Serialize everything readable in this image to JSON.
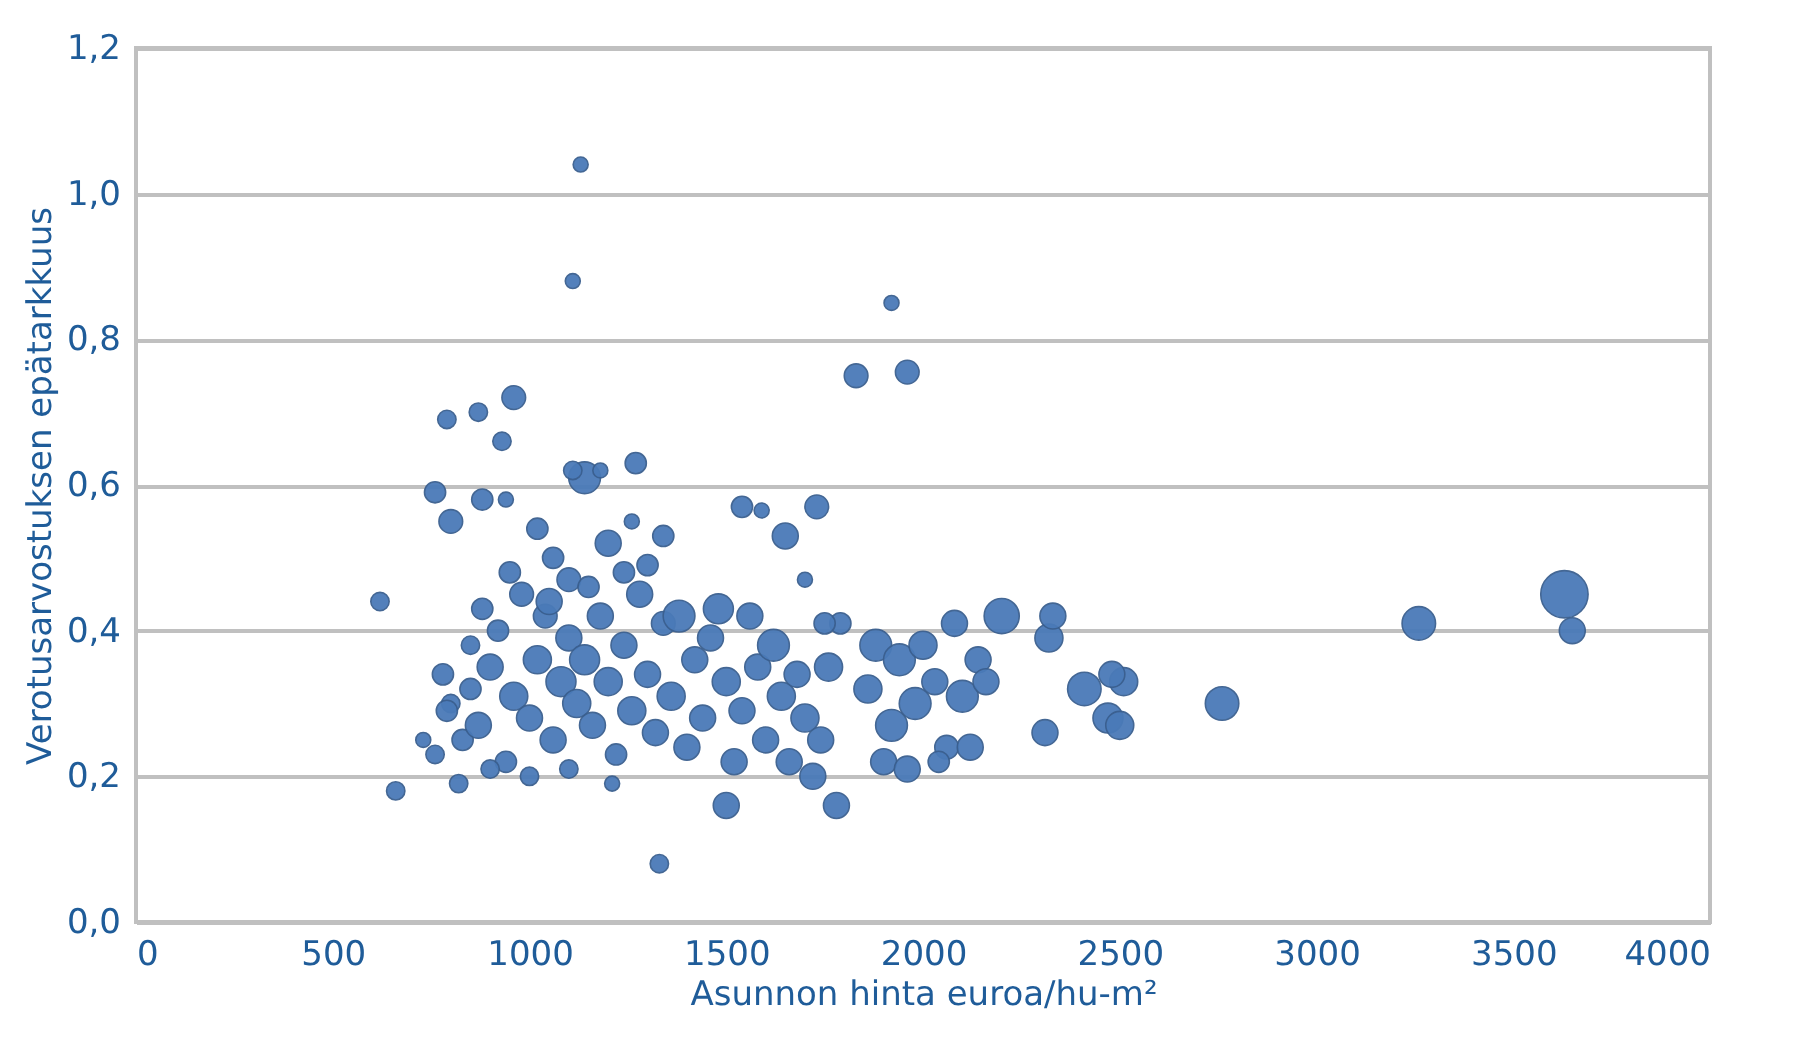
{
  "chart_data": {
    "type": "bubble",
    "xlabel": "Asunnon hinta euroa/hu-m²",
    "ylabel": "Verotusarvostuksen epätarkkuus",
    "xlim": [
      0,
      4000
    ],
    "xticks": [
      0,
      500,
      1000,
      1500,
      2000,
      2500,
      3000,
      3500,
      4000
    ],
    "ylim": [
      0,
      1.2
    ],
    "yticks": [
      {
        "value": 0,
        "label": "0,0"
      },
      {
        "value": 0.2,
        "label": "0,2"
      },
      {
        "value": 0.4,
        "label": "0,4"
      },
      {
        "value": 0.6,
        "label": "0,6"
      },
      {
        "value": 0.8,
        "label": "0,8"
      },
      {
        "value": 1.0,
        "label": "1,0"
      },
      {
        "value": 1.2,
        "label": "1,2"
      }
    ],
    "grid": "y",
    "series": [
      {
        "color": "#4a7ab8",
        "x": [
          1130,
          1110,
          1920,
          1830,
          1960,
          620,
          660,
          1330,
          3630,
          3650,
          3260,
          2760,
          2320,
          2330,
          2200,
          2310,
          2410,
          2470,
          2500,
          2510,
          2480,
          960,
          870,
          790,
          930,
          1140,
          1270,
          1110,
          1180,
          760,
          880,
          940,
          800,
          1020,
          1200,
          1260,
          1060,
          1650,
          1730,
          1540,
          1590,
          780,
          800,
          830,
          850,
          870,
          900,
          920,
          940,
          960,
          980,
          1000,
          1020,
          1040,
          1060,
          1080,
          1100,
          1120,
          1140,
          1160,
          1180,
          1200,
          1220,
          1240,
          1260,
          1280,
          1300,
          1320,
          1340,
          1360,
          1380,
          1400,
          1420,
          1440,
          1460,
          1480,
          1500,
          1520,
          1540,
          1560,
          1580,
          1600,
          1620,
          1640,
          1660,
          1680,
          1700,
          1720,
          1740,
          1760,
          1780,
          1790,
          1500,
          1860,
          1880,
          1900,
          1920,
          1940,
          1960,
          1980,
          2000,
          2030,
          2060,
          2080,
          2100,
          2120,
          2140,
          2160,
          2040,
          730,
          760,
          790,
          820,
          900,
          1000,
          1100,
          1210,
          950,
          1100,
          1300,
          1340,
          1240,
          1700,
          1750,
          850,
          880,
          1050,
          1150
        ],
        "values": [
          1.04,
          0.88,
          0.85,
          0.75,
          0.755,
          0.44,
          0.18,
          0.08,
          0.45,
          0.4,
          0.41,
          0.3,
          0.39,
          0.42,
          0.42,
          0.26,
          0.32,
          0.28,
          0.27,
          0.33,
          0.34,
          0.72,
          0.7,
          0.69,
          0.66,
          0.61,
          0.63,
          0.62,
          0.62,
          0.59,
          0.58,
          0.58,
          0.55,
          0.54,
          0.52,
          0.55,
          0.5,
          0.53,
          0.57,
          0.57,
          0.565,
          0.34,
          0.3,
          0.25,
          0.38,
          0.27,
          0.35,
          0.4,
          0.22,
          0.31,
          0.45,
          0.28,
          0.36,
          0.42,
          0.25,
          0.33,
          0.39,
          0.3,
          0.36,
          0.27,
          0.42,
          0.33,
          0.23,
          0.38,
          0.29,
          0.45,
          0.34,
          0.26,
          0.41,
          0.31,
          0.42,
          0.24,
          0.36,
          0.28,
          0.39,
          0.43,
          0.33,
          0.22,
          0.29,
          0.42,
          0.35,
          0.25,
          0.38,
          0.31,
          0.22,
          0.34,
          0.28,
          0.2,
          0.25,
          0.35,
          0.16,
          0.41,
          0.16,
          0.32,
          0.38,
          0.22,
          0.27,
          0.36,
          0.21,
          0.3,
          0.38,
          0.33,
          0.24,
          0.41,
          0.31,
          0.24,
          0.36,
          0.33,
          0.22,
          0.25,
          0.23,
          0.29,
          0.19,
          0.21,
          0.2,
          0.21,
          0.19,
          0.48,
          0.47,
          0.49,
          0.53,
          0.48,
          0.47,
          0.41,
          0.32,
          0.43,
          0.44,
          0.46
        ],
        "sizes": [
          0.1,
          0.1,
          0.1,
          0.25,
          0.25,
          0.15,
          0.15,
          0.15,
          1.0,
          0.3,
          0.5,
          0.5,
          0.35,
          0.3,
          0.55,
          0.3,
          0.5,
          0.4,
          0.35,
          0.35,
          0.3,
          0.25,
          0.15,
          0.15,
          0.15,
          0.45,
          0.2,
          0.15,
          0.1,
          0.2,
          0.2,
          0.1,
          0.25,
          0.2,
          0.3,
          0.1,
          0.2,
          0.3,
          0.25,
          0.2,
          0.1,
          0.2,
          0.15,
          0.2,
          0.15,
          0.3,
          0.3,
          0.2,
          0.2,
          0.35,
          0.25,
          0.3,
          0.35,
          0.25,
          0.3,
          0.4,
          0.3,
          0.35,
          0.4,
          0.3,
          0.3,
          0.35,
          0.2,
          0.3,
          0.35,
          0.3,
          0.3,
          0.3,
          0.25,
          0.35,
          0.45,
          0.3,
          0.3,
          0.3,
          0.3,
          0.4,
          0.35,
          0.3,
          0.3,
          0.3,
          0.3,
          0.3,
          0.45,
          0.35,
          0.3,
          0.3,
          0.35,
          0.3,
          0.3,
          0.35,
          0.3,
          0.2,
          0.3,
          0.35,
          0.45,
          0.3,
          0.45,
          0.45,
          0.3,
          0.45,
          0.35,
          0.3,
          0.25,
          0.3,
          0.45,
          0.3,
          0.3,
          0.3,
          0.2,
          0.1,
          0.15,
          0.2,
          0.15,
          0.15,
          0.15,
          0.15,
          0.1,
          0.2,
          0.25,
          0.2,
          0.2,
          0.2,
          0.1,
          0.2,
          0.2,
          0.2,
          0.3,
          0.2
        ]
      }
    ]
  }
}
